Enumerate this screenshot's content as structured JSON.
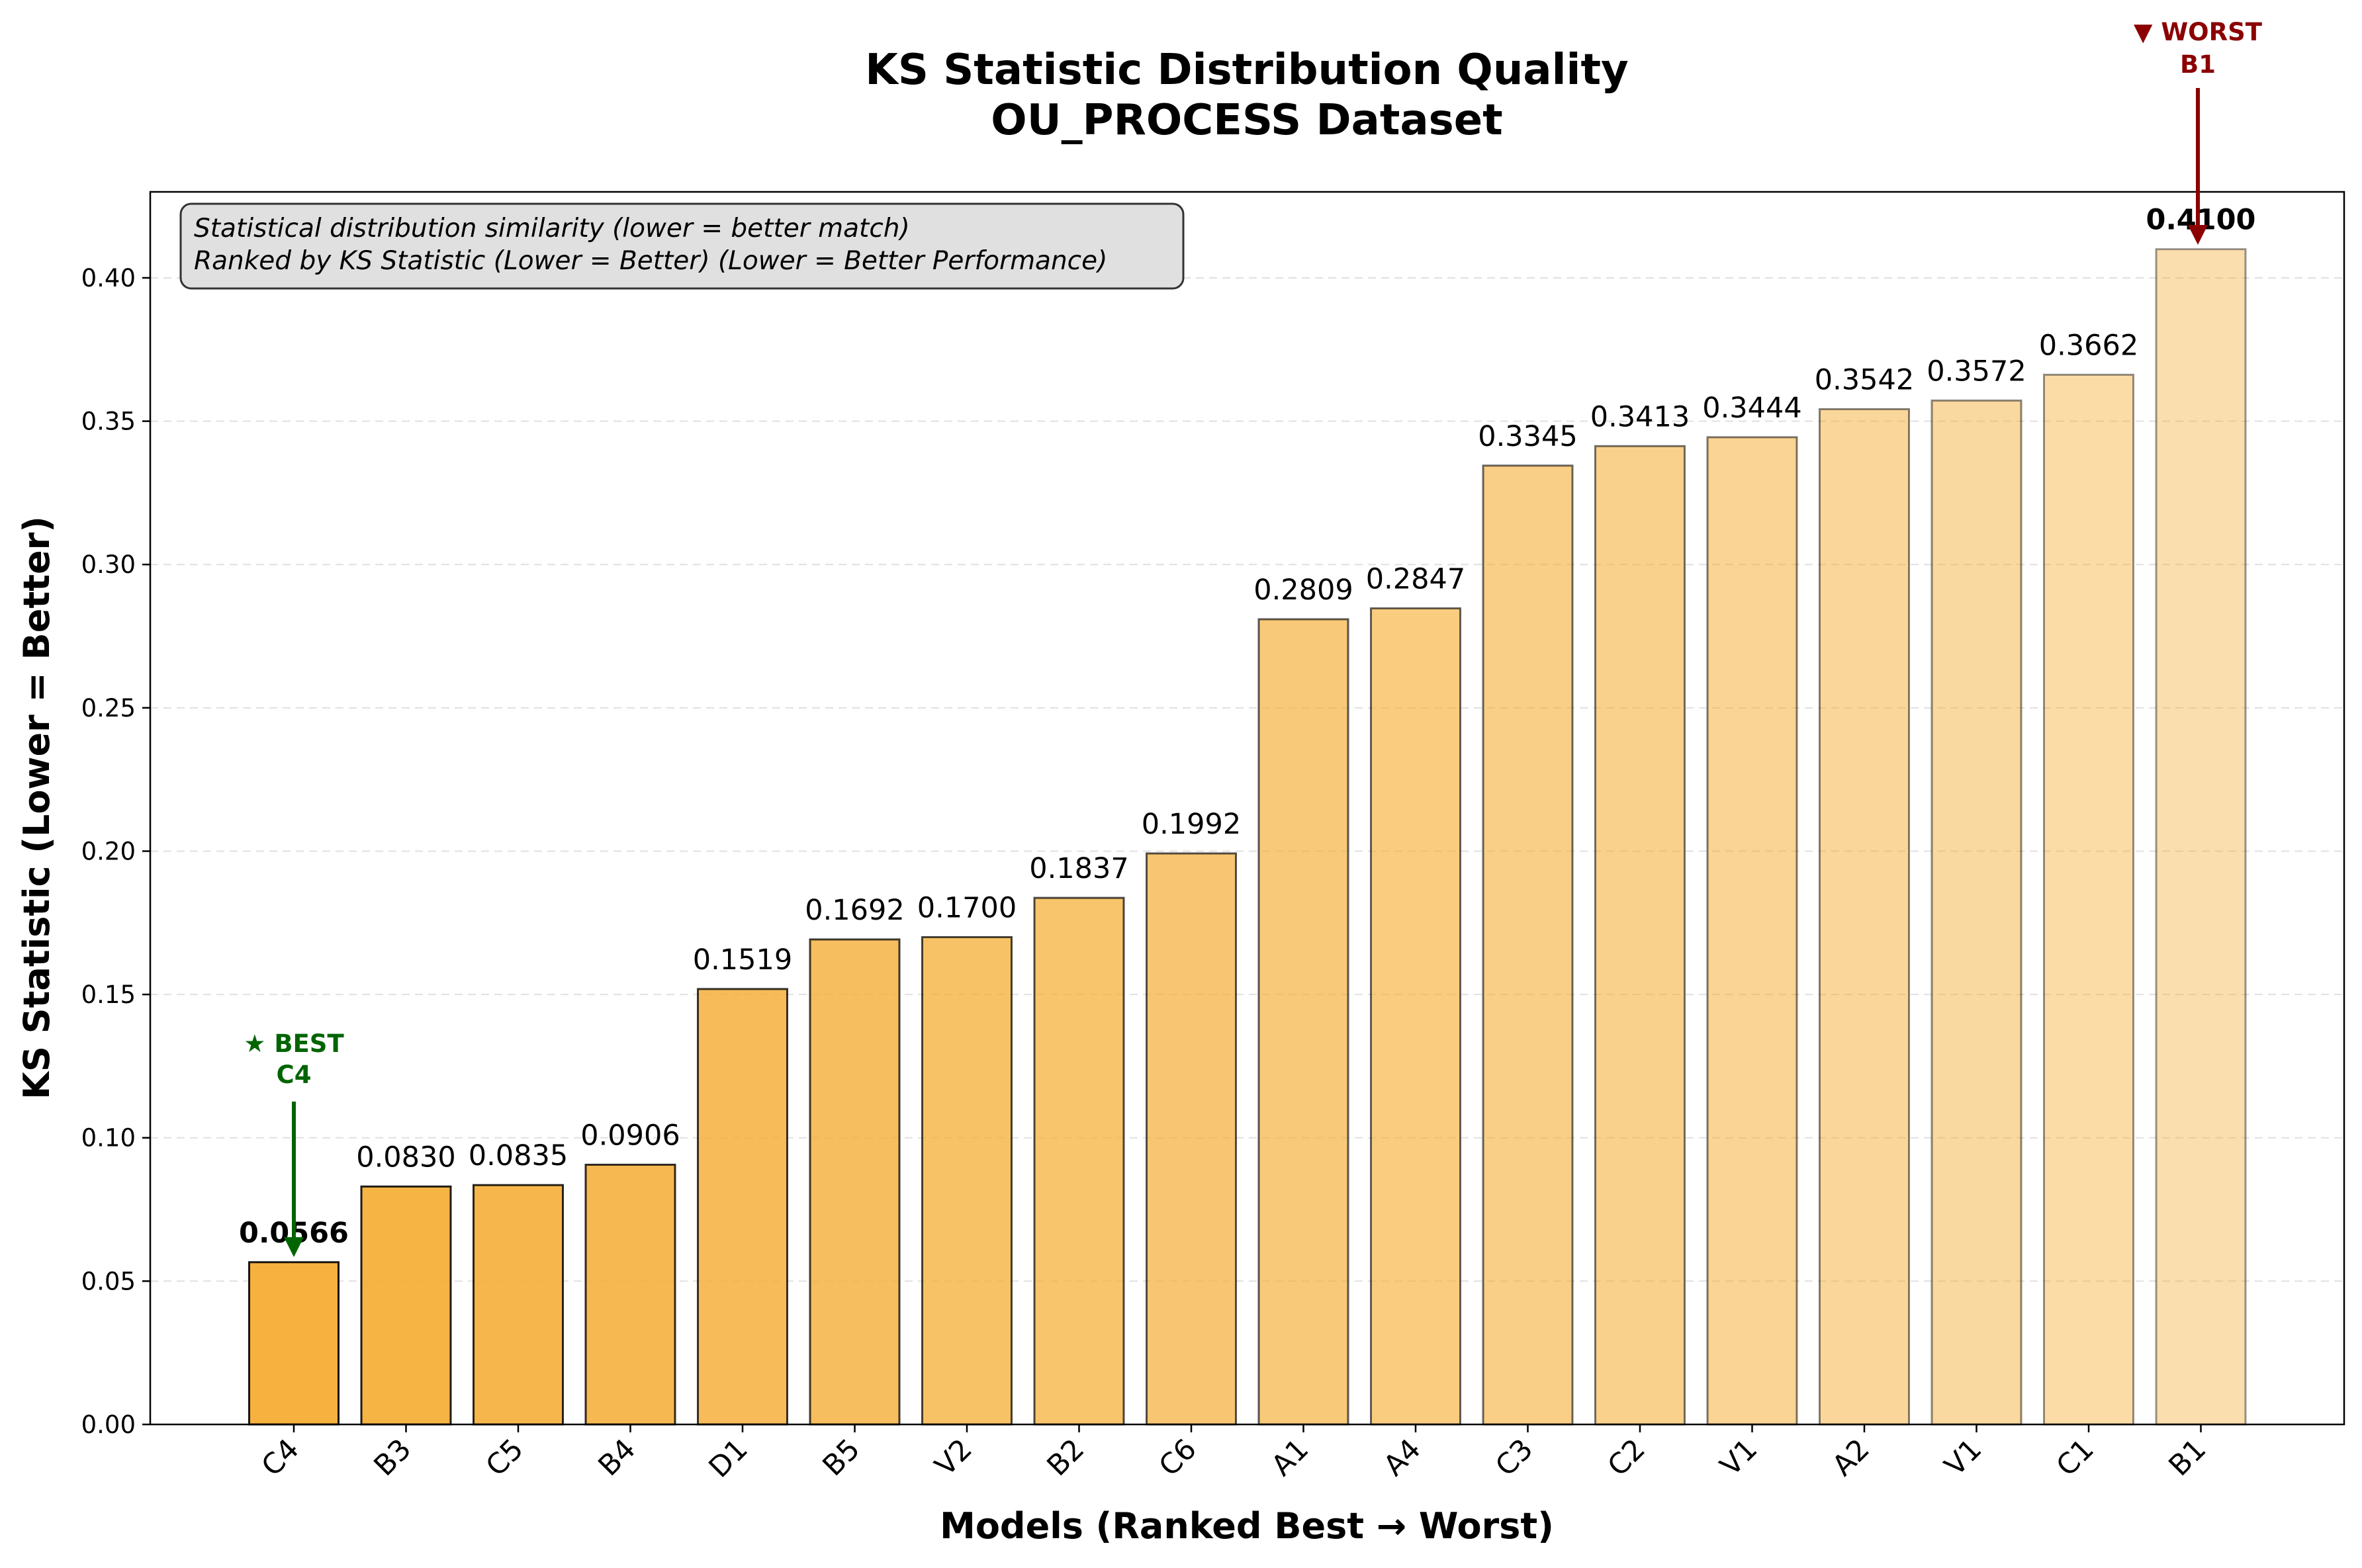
{
  "chart_data": {
    "type": "bar",
    "title_line1": "KS Statistic Distribution Quality",
    "title_line2": "OU_PROCESS Dataset",
    "xlabel": "Models (Ranked Best → Worst)",
    "ylabel": "KS Statistic (Lower = Better)",
    "ylim": [
      0,
      0.43
    ],
    "yticks": [
      "0.00",
      "0.05",
      "0.10",
      "0.15",
      "0.20",
      "0.25",
      "0.30",
      "0.35",
      "0.40"
    ],
    "grid": "horizontal dashed",
    "categories": [
      "C4",
      "B3",
      "C5",
      "B4",
      "D1",
      "B5",
      "V2",
      "B2",
      "C6",
      "A1",
      "A4",
      "C3",
      "C2",
      "V1",
      "A2",
      "V1",
      "C1",
      "B1"
    ],
    "values": [
      0.0566,
      0.083,
      0.0835,
      0.0906,
      0.1519,
      0.1692,
      0.17,
      0.1837,
      0.1992,
      0.2809,
      0.2847,
      0.3345,
      0.3413,
      0.3444,
      0.3542,
      0.3572,
      0.3662,
      0.41
    ],
    "value_labels": [
      "0.0566",
      "0.0830",
      "0.0835",
      "0.0906",
      "0.1519",
      "0.1692",
      "0.1700",
      "0.1837",
      "0.1992",
      "0.2809",
      "0.2847",
      "0.3345",
      "0.3413",
      "0.3444",
      "0.3542",
      "0.3572",
      "0.3662",
      "0.4100"
    ],
    "bar_color": "#f5ad34",
    "info_box": {
      "line1": "Statistical distribution similarity (lower = better match)",
      "line2": "Ranked by KS Statistic (Lower = Better) (Lower = Better Performance)"
    },
    "best_annotation": {
      "line1": "★ BEST",
      "line2": "C4",
      "color": "#006400"
    },
    "worst_annotation": {
      "line1": "▼ WORST",
      "line2": "B1",
      "color": "#8b0000"
    }
  }
}
